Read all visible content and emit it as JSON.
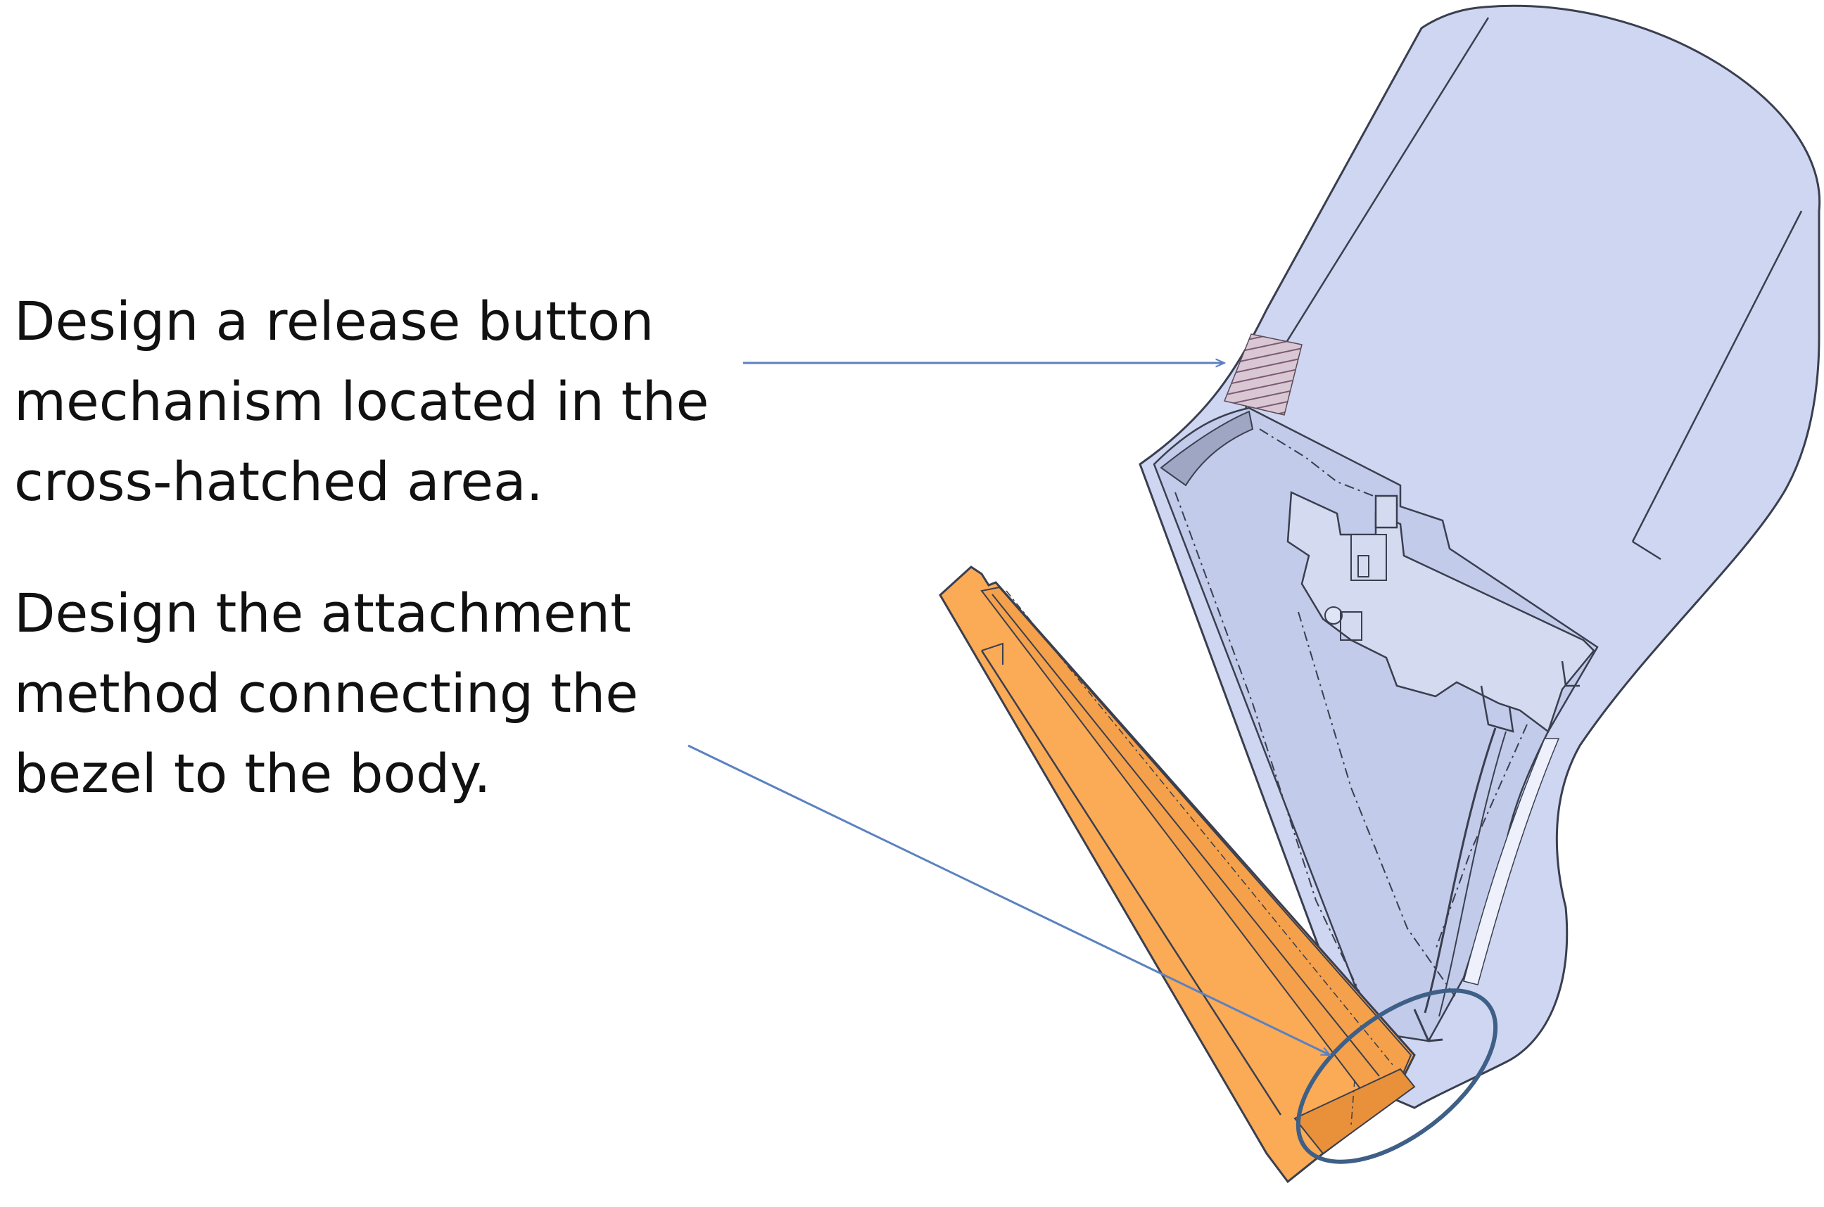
{
  "captions": [
    {
      "lines": [
        "Design a release button",
        "mechanism located in the",
        "cross-hatched area."
      ]
    },
    {
      "lines": [
        "Design the attachment",
        "method connecting the",
        "bezel to the body."
      ]
    }
  ],
  "colors": {
    "body_fill": "#cfd6f1",
    "body_inner": "#c2cbea",
    "outline": "#3a3f4f",
    "bezel_fill": "#fbaa55",
    "bezel_shade": "#e8913a",
    "arrow": "#5b82bf",
    "highlight_ellipse": "#3e5f86",
    "hatch": "#7b5a74"
  }
}
